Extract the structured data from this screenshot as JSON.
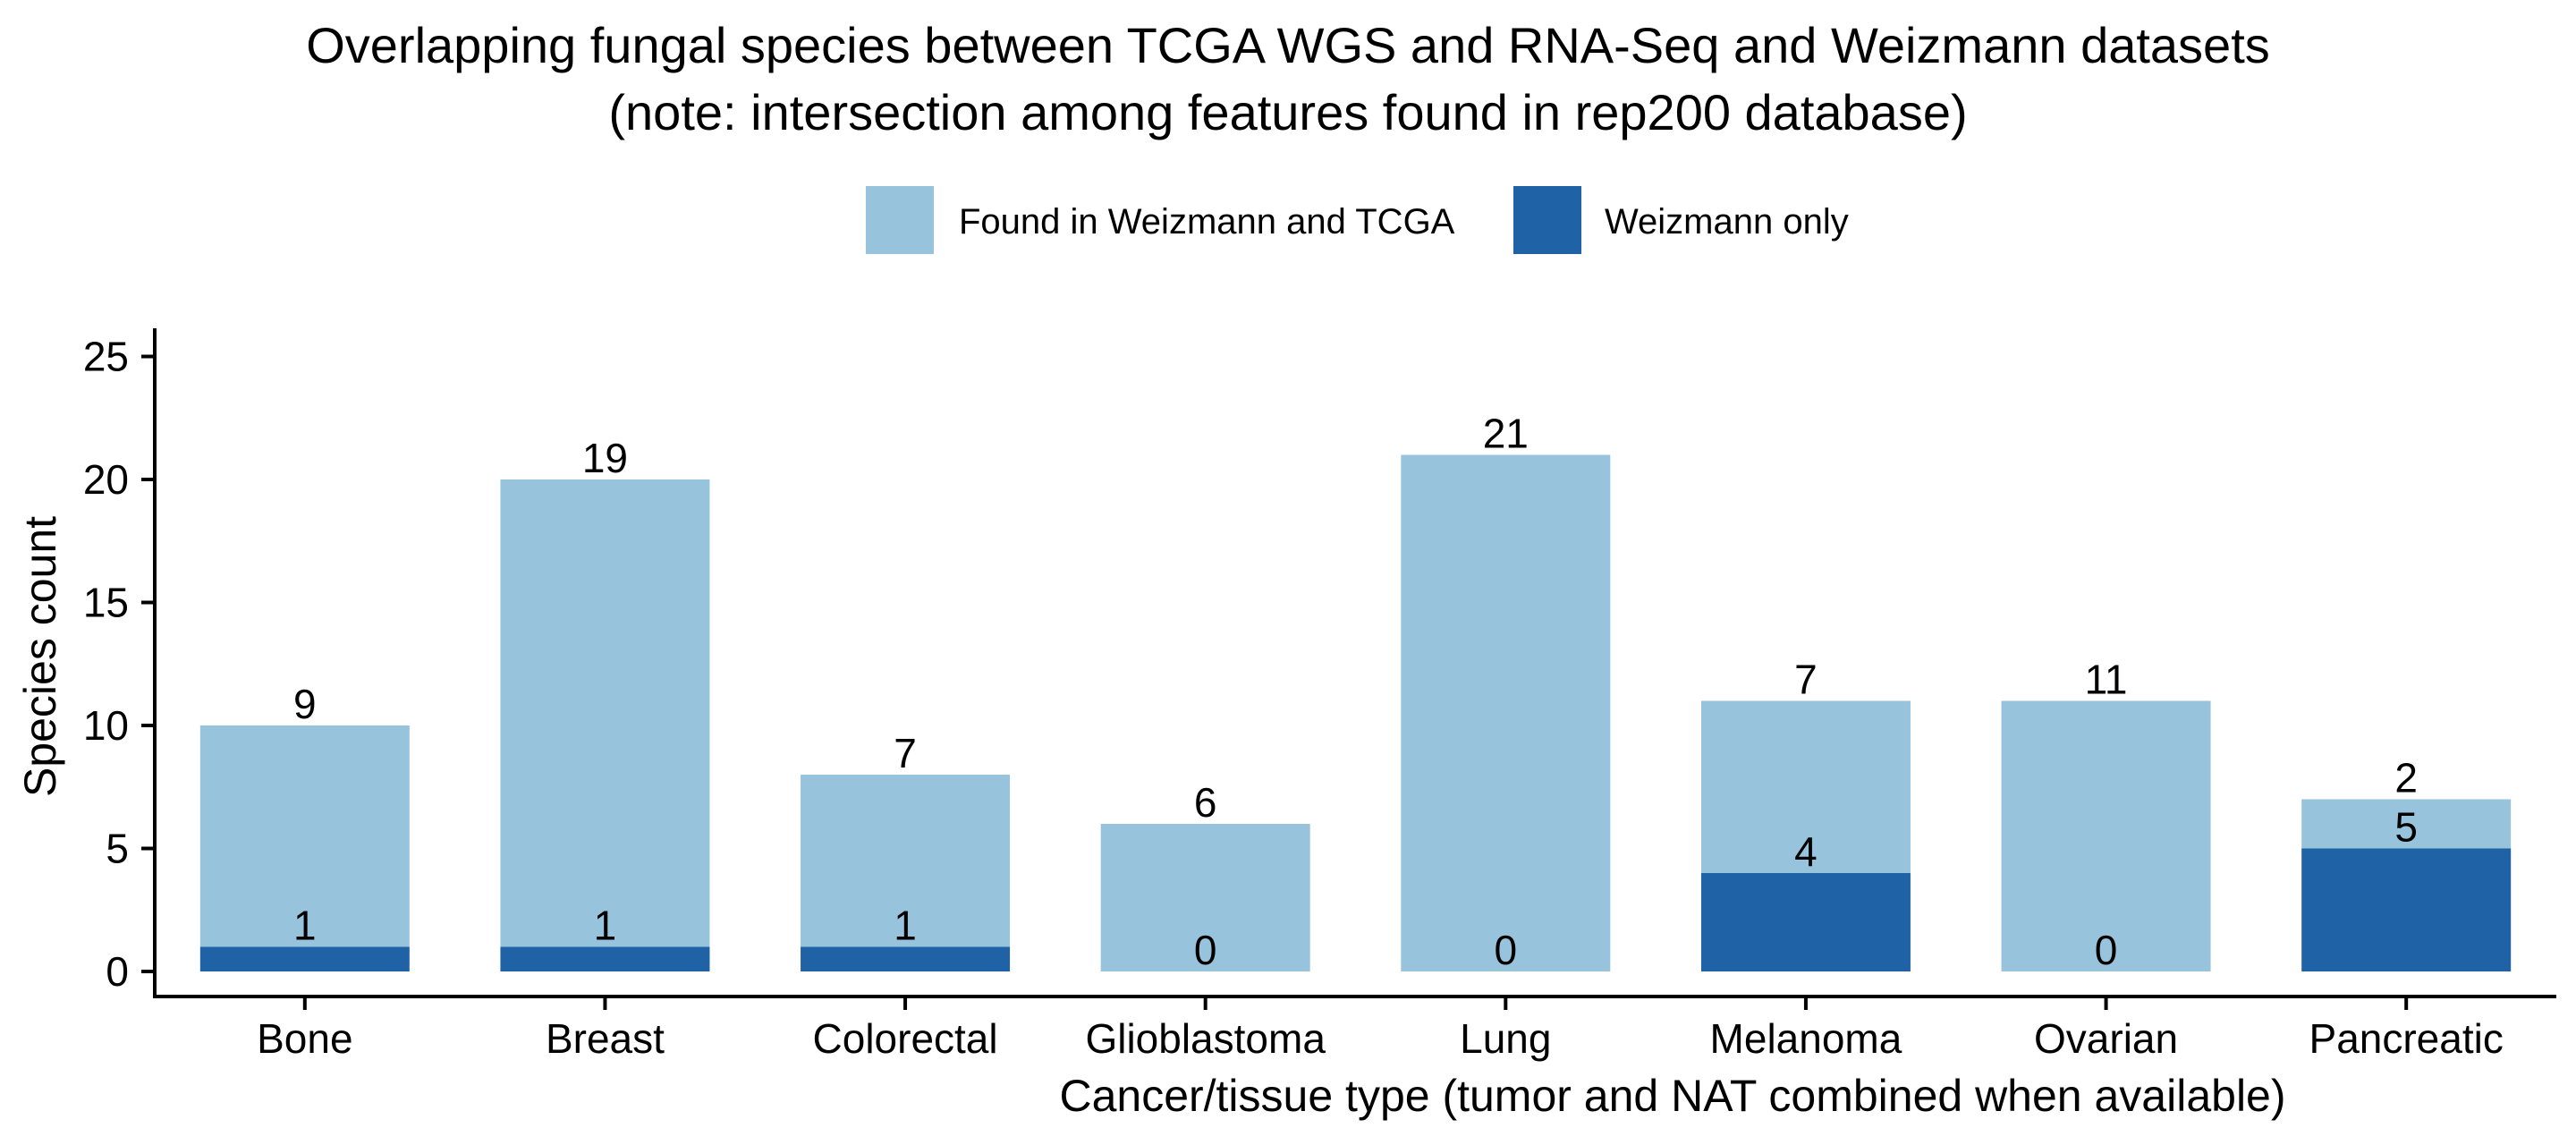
{
  "chart_data": {
    "type": "bar",
    "stacked": true,
    "title_line1": "Overlapping fungal species between TCGA WGS and RNA-Seq and Weizmann datasets",
    "title_line2": "(note: intersection among features found in rep200 database)",
    "xlabel": "Cancer/tissue type (tumor and NAT combined when available)",
    "ylabel": "Species count",
    "categories": [
      "Bone",
      "Breast",
      "Colorectal",
      "Glioblastoma",
      "Lung",
      "Melanoma",
      "Ovarian",
      "Pancreatic"
    ],
    "series": [
      {
        "name": "Weizmann only",
        "color": "#1f63a6",
        "values": [
          1,
          1,
          1,
          0,
          0,
          4,
          0,
          5
        ]
      },
      {
        "name": "Found in Weizmann and TCGA",
        "color": "#97c3dc",
        "values": [
          9,
          19,
          7,
          6,
          21,
          7,
          11,
          2
        ]
      }
    ],
    "legend_order": [
      "Found in Weizmann and TCGA",
      "Weizmann only"
    ],
    "legend_position": "top",
    "ylim": [
      0,
      25
    ],
    "yticks": [
      0,
      5,
      10,
      15,
      20,
      25
    ],
    "grid": false
  }
}
